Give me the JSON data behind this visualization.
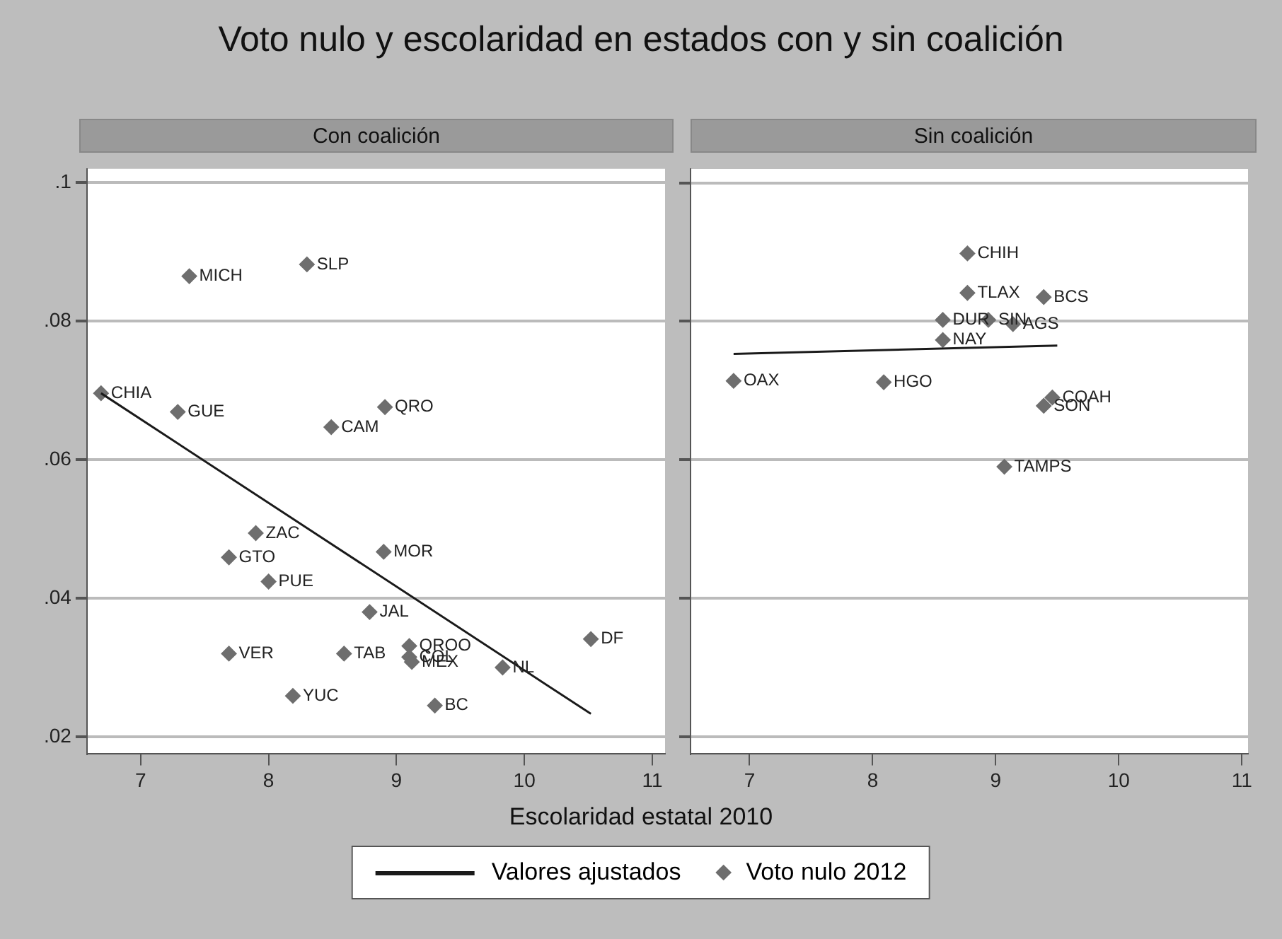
{
  "chart_data": [
    {
      "type": "scatter",
      "title": "Voto nulo y escolaridad en estados con y sin coalición",
      "subtitle": "Con coalición",
      "xlabel": "Escolaridad estatal 2010",
      "xlim": [
        6.58,
        11.1
      ],
      "xticks": [
        7,
        8,
        9,
        10,
        11
      ],
      "ylim": [
        0.0175,
        0.102
      ],
      "yticks": [
        {
          "value": 0.02,
          "label": ".02"
        },
        {
          "value": 0.04,
          "label": ".04"
        },
        {
          "value": 0.06,
          "label": ".06"
        },
        {
          "value": 0.08,
          "label": ".08"
        },
        {
          "value": 0.1,
          "label": ".1"
        }
      ],
      "grid": "y",
      "legend": "bottom",
      "series": [
        {
          "name": "Valores ajustados",
          "type": "line",
          "marker": "none",
          "color": "#1a1a1a",
          "line_style": "solid",
          "x": [
            6.69,
            10.52
          ],
          "values": [
            0.0696,
            0.0233
          ]
        },
        {
          "name": "Voto nulo 2012",
          "marker": "diamond",
          "color": "#6e6e6e",
          "x": [
            7.38,
            8.3,
            6.69,
            7.29,
            8.91,
            8.49,
            7.9,
            7.69,
            8.0,
            8.9,
            8.79,
            10.52,
            7.69,
            8.59,
            9.1,
            9.1,
            9.12,
            9.83,
            8.19,
            9.3
          ],
          "values": [
            0.0865,
            0.0882,
            0.0696,
            0.0669,
            0.0676,
            0.0647,
            0.0494,
            0.0459,
            0.0424,
            0.0467,
            0.038,
            0.0341,
            0.032,
            0.032,
            0.0331,
            0.0315,
            0.0308,
            0.03,
            0.0259,
            0.0245
          ]
        }
      ],
      "annotations": [
        {
          "text": "MICH",
          "x": 7.38,
          "y": 0.0865
        },
        {
          "text": "SLP",
          "x": 8.3,
          "y": 0.0882
        },
        {
          "text": "CHIA",
          "x": 6.69,
          "y": 0.0696
        },
        {
          "text": "GUE",
          "x": 7.29,
          "y": 0.0669
        },
        {
          "text": "QRO",
          "x": 8.91,
          "y": 0.0676
        },
        {
          "text": "CAM",
          "x": 8.49,
          "y": 0.0647
        },
        {
          "text": "ZAC",
          "x": 7.9,
          "y": 0.0494
        },
        {
          "text": "GTO",
          "x": 7.69,
          "y": 0.0459
        },
        {
          "text": "PUE",
          "x": 8.0,
          "y": 0.0424
        },
        {
          "text": "MOR",
          "x": 8.9,
          "y": 0.0467
        },
        {
          "text": "JAL",
          "x": 8.79,
          "y": 0.038
        },
        {
          "text": "DF",
          "x": 10.52,
          "y": 0.0341
        },
        {
          "text": "VER",
          "x": 7.69,
          "y": 0.032
        },
        {
          "text": "TAB",
          "x": 8.59,
          "y": 0.032
        },
        {
          "text": "QROO",
          "x": 9.1,
          "y": 0.0331
        },
        {
          "text": "COL",
          "x": 9.1,
          "y": 0.0315
        },
        {
          "text": "MEX",
          "x": 9.12,
          "y": 0.0308
        },
        {
          "text": "NL",
          "x": 9.83,
          "y": 0.03
        },
        {
          "text": "YUC",
          "x": 8.19,
          "y": 0.0259
        },
        {
          "text": "BC",
          "x": 9.3,
          "y": 0.0245
        }
      ]
    },
    {
      "type": "scatter",
      "subtitle": "Sin coalición",
      "xlim": [
        6.52,
        11.05
      ],
      "xticks": [
        7,
        8,
        9,
        10,
        11
      ],
      "ylim": [
        0.0175,
        0.102
      ],
      "yticks": [
        0.02,
        0.04,
        0.06,
        0.08,
        0.1
      ],
      "grid": "y",
      "tick_labels": "x",
      "series": [
        {
          "type": "line",
          "marker": "none",
          "color": "#1a1a1a",
          "line_style": "solid",
          "x": [
            6.87,
            9.5
          ],
          "values": [
            0.0753,
            0.0765
          ]
        },
        {
          "marker": "diamond",
          "color": "#6e6e6e",
          "x": [
            8.77,
            8.77,
            9.39,
            8.57,
            8.94,
            9.14,
            8.57,
            6.87,
            8.09,
            9.46,
            9.39,
            9.07
          ],
          "values": [
            0.0898,
            0.0841,
            0.0835,
            0.0802,
            0.0802,
            0.0796,
            0.0773,
            0.0714,
            0.0712,
            0.069,
            0.0678,
            0.059
          ]
        }
      ],
      "annotations": [
        {
          "text": "CHIH",
          "x": 8.77,
          "y": 0.0898
        },
        {
          "text": "TLAX",
          "x": 8.77,
          "y": 0.0841
        },
        {
          "text": "BCS",
          "x": 9.39,
          "y": 0.0835
        },
        {
          "text": "DUR",
          "x": 8.57,
          "y": 0.0802
        },
        {
          "text": "SIN",
          "x": 8.94,
          "y": 0.0802
        },
        {
          "text": "AGS",
          "x": 9.14,
          "y": 0.0796
        },
        {
          "text": "NAY",
          "x": 8.57,
          "y": 0.0773
        },
        {
          "text": "OAX",
          "x": 6.87,
          "y": 0.0714
        },
        {
          "text": "HGO",
          "x": 8.09,
          "y": 0.0712
        },
        {
          "text": "COAH",
          "x": 9.46,
          "y": 0.069
        },
        {
          "text": "SON",
          "x": 9.39,
          "y": 0.0678
        },
        {
          "text": "TAMPS",
          "x": 9.07,
          "y": 0.059
        }
      ]
    }
  ]
}
